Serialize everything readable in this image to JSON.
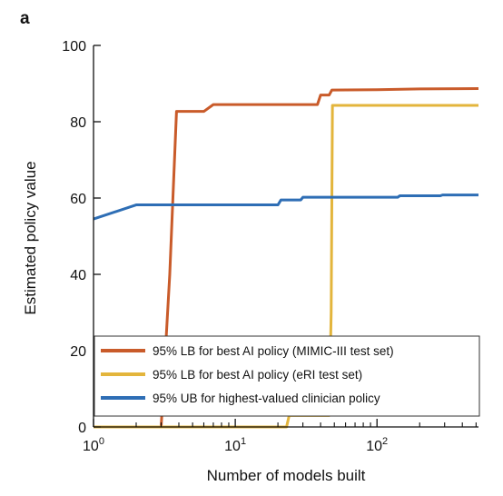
{
  "panel_label": "a",
  "chart_data": {
    "type": "line",
    "xlabel": "Number of models built",
    "ylabel": "Estimated policy value",
    "xscale": "log",
    "xlim": [
      1,
      520
    ],
    "ylim": [
      0,
      100
    ],
    "yticks": [
      0,
      20,
      40,
      60,
      80,
      100
    ],
    "ytick_labels": [
      "0",
      "20",
      "40",
      "60",
      "80",
      "100"
    ],
    "xticks_major": [
      1,
      10,
      100
    ],
    "xtick_labels": [
      {
        "base": "10",
        "exp": "0"
      },
      {
        "base": "10",
        "exp": "1"
      },
      {
        "base": "10",
        "exp": "2"
      }
    ],
    "grid": false,
    "legend_position": "bottom-left",
    "series": [
      {
        "name": "95% LB for best AI policy (MIMIC-III test set)",
        "color": "#c95b2a",
        "points": [
          [
            3,
            0
          ],
          [
            3.45,
            40
          ],
          [
            3.85,
            82.7
          ],
          [
            6,
            82.7
          ],
          [
            7,
            84.5
          ],
          [
            38,
            84.5
          ],
          [
            40,
            87
          ],
          [
            46,
            87
          ],
          [
            48,
            88.3
          ],
          [
            100,
            88.4
          ],
          [
            200,
            88.6
          ],
          [
            520,
            88.7
          ]
        ]
      },
      {
        "name": "95% LB for best AI policy (eRI test set)",
        "color": "#e3b53c",
        "points": [
          [
            1,
            0
          ],
          [
            23,
            0
          ],
          [
            24,
            3
          ],
          [
            46,
            3
          ],
          [
            47.5,
            30
          ],
          [
            48.5,
            84.3
          ],
          [
            520,
            84.3
          ]
        ]
      },
      {
        "name": "95% UB for highest-valued clinician policy",
        "color": "#2e6eb5",
        "points": [
          [
            1,
            54.5
          ],
          [
            2,
            58.2
          ],
          [
            20,
            58.2
          ],
          [
            21,
            59.5
          ],
          [
            29,
            59.5
          ],
          [
            30,
            60.2
          ],
          [
            140,
            60.2
          ],
          [
            145,
            60.6
          ],
          [
            280,
            60.6
          ],
          [
            290,
            60.8
          ],
          [
            520,
            60.8
          ]
        ]
      }
    ]
  }
}
